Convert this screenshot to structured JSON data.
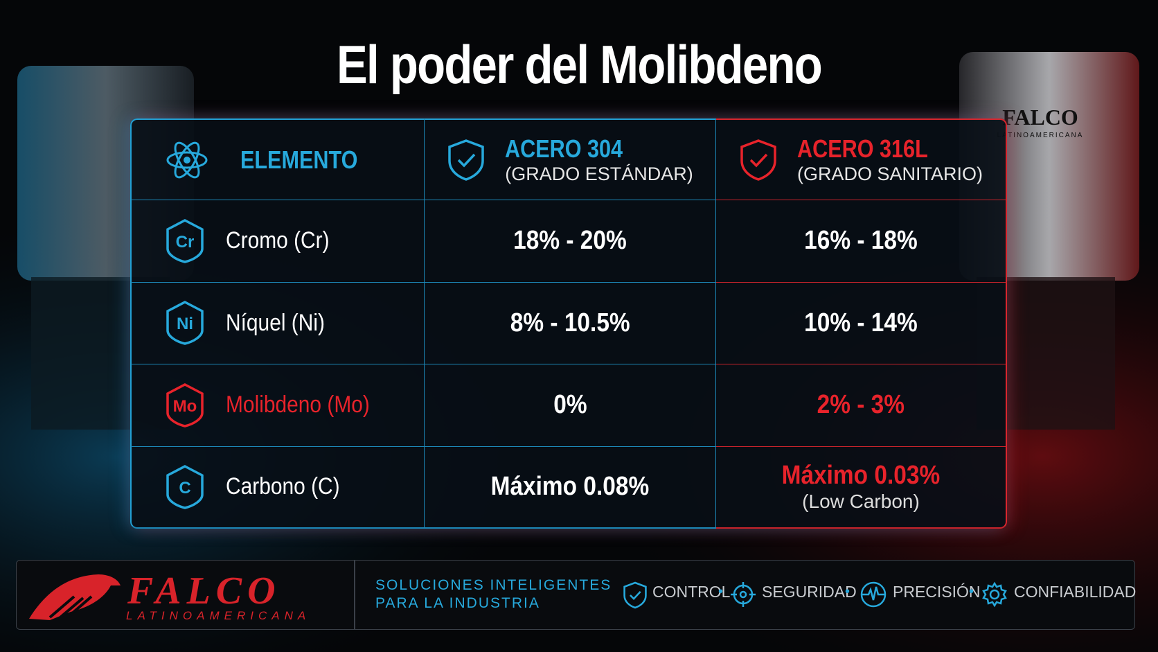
{
  "title": "El poder del Molibdeno",
  "silo_logo": {
    "brand": "FALCO",
    "sub": "LATINOAMERICANA"
  },
  "table": {
    "header": [
      {
        "label": "ELEMENTO"
      },
      {
        "label": "ACERO 304",
        "sublabel": "(GRADO ESTÁNDAR)"
      },
      {
        "label": "ACERO 316L",
        "sublabel": "(GRADO SANITARIO)"
      }
    ],
    "rows": [
      {
        "symbol": "Cr",
        "element": "Cromo (Cr)",
        "acero_304": "18% - 20%",
        "acero_316l": "16% - 18%"
      },
      {
        "symbol": "Ni",
        "element": "Níquel (Ni)",
        "acero_304": "8% - 10.5%",
        "acero_316l": "10% - 14%"
      },
      {
        "symbol": "Mo",
        "element": "Molibdeno (Mo)",
        "acero_304": "0%",
        "acero_316l": "2% - 3%"
      },
      {
        "symbol": "C",
        "element": "Carbono (C)",
        "acero_304": "Máximo 0.08%",
        "acero_316l": "Máximo 0.03%",
        "note": "(Low Carbon)"
      }
    ]
  },
  "footer": {
    "brand": "FALCO",
    "brand_sub": "LATINOAMERICANA",
    "tagline": [
      "SOLUCIONES INTELIGENTES",
      "PARA LA INDUSTRIA"
    ],
    "features": [
      "CONTROL",
      "SEGURIDAD",
      "PRECISIÓN",
      "CONFIABILIDAD"
    ]
  }
}
